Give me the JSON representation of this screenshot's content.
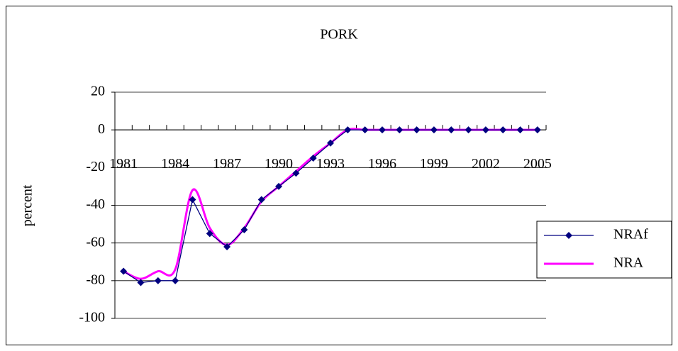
{
  "chart_data": {
    "type": "line",
    "title": "PORK",
    "y_label": "percent",
    "categories": [
      "1981",
      null,
      null,
      "1984",
      null,
      null,
      "1987",
      null,
      null,
      "1990",
      null,
      null,
      "1993",
      null,
      null,
      "1996",
      null,
      null,
      "1999",
      null,
      null,
      "2002",
      null,
      null,
      "2005"
    ],
    "series": [
      {
        "name": "NRAf",
        "color": "#000080",
        "marker": "diamond",
        "smooth": false,
        "values": [
          -75,
          -81,
          -80,
          -80,
          -37,
          -55,
          -62,
          -53,
          -37,
          -30,
          -23,
          -15,
          -7,
          0,
          0,
          0,
          0,
          0,
          0,
          0,
          0,
          0,
          0,
          0,
          0
        ]
      },
      {
        "name": "NRA",
        "color": "#ff00ff",
        "marker": null,
        "smooth": true,
        "values": [
          -75,
          -79,
          -75,
          -74,
          -32,
          -52,
          -61,
          -52,
          -38,
          -30,
          -22,
          -14,
          -7,
          0,
          0,
          0,
          0,
          0,
          0,
          0,
          0,
          0,
          0,
          0,
          0
        ]
      }
    ],
    "ylim": [
      -100,
      20
    ],
    "yticks": [
      -100,
      -80,
      -60,
      -40,
      -20,
      0,
      20
    ],
    "grid": true,
    "legend": "right"
  }
}
